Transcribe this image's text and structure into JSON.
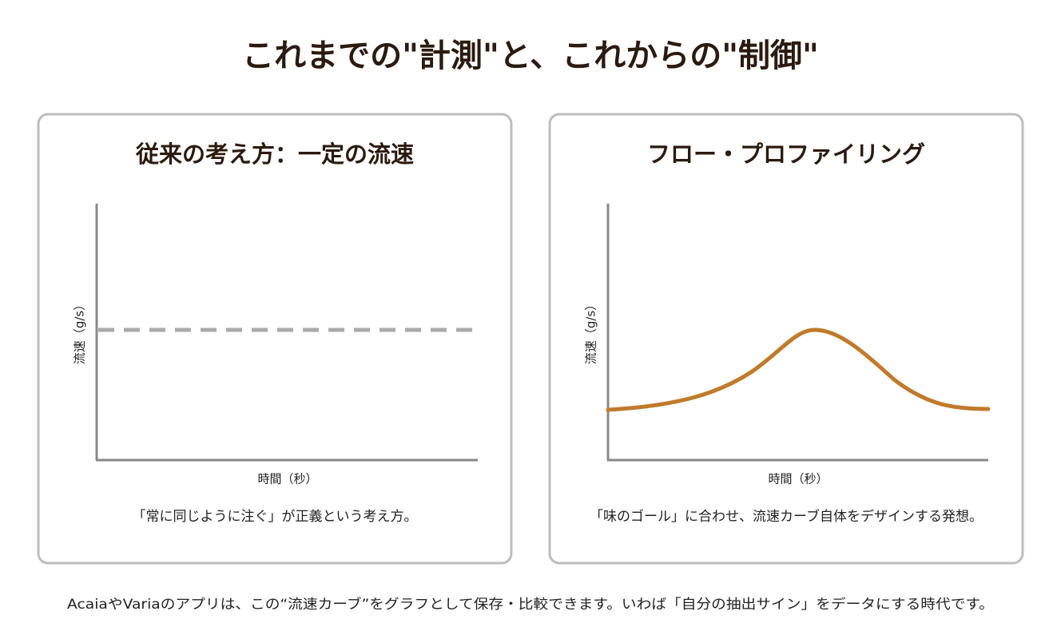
{
  "header": {
    "title": "これまでの\"計測\"と、これからの\"制御\""
  },
  "panels": [
    {
      "title": "従来の考え方：一定の流速",
      "y_label": "流速（g/s）",
      "x_label": "時間（秒）",
      "caption": "「常に同じように注ぐ」が正義という考え方。"
    },
    {
      "title": "フロー・プロファイリング",
      "y_label": "流速（g/s）",
      "x_label": "時間（秒）",
      "caption": "「味のゴール」に合わせ、流速カーブ自体をデザインする発想。"
    }
  ],
  "footer": {
    "text": "AcaiaやVariaのアプリは、この“流速カーブ”をグラフとして保存・比較できます。いわば「自分の抽出サイン」をデータにする時代です。"
  }
}
